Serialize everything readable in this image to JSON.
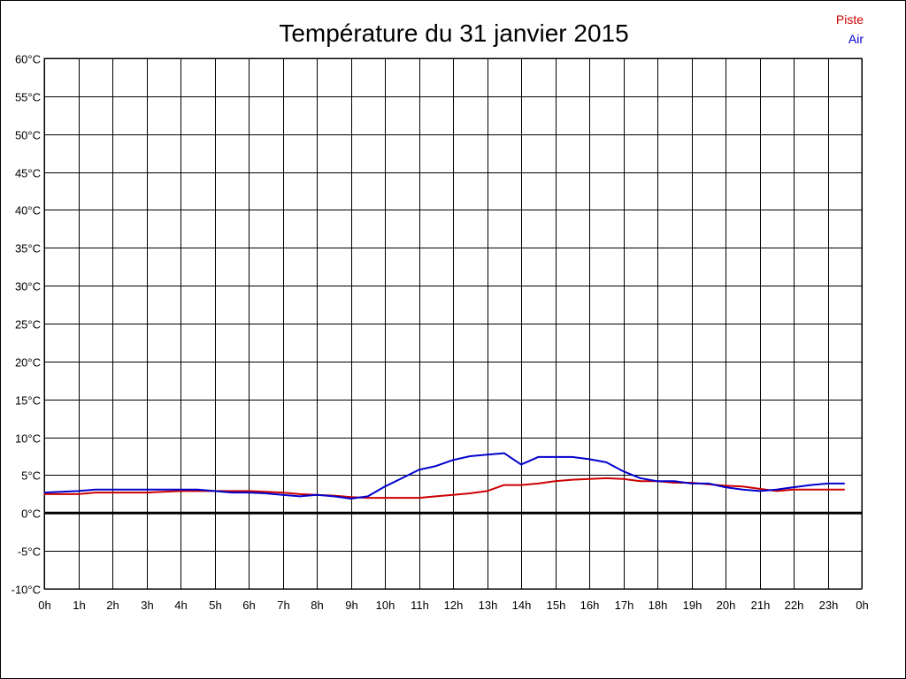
{
  "chart_data": {
    "type": "line",
    "title": "Température du 31 janvier 2015",
    "xlabel": "",
    "ylabel": "",
    "x_ticks": [
      "0h",
      "1h",
      "2h",
      "3h",
      "4h",
      "5h",
      "6h",
      "7h",
      "8h",
      "9h",
      "10h",
      "11h",
      "12h",
      "13h",
      "14h",
      "15h",
      "16h",
      "17h",
      "18h",
      "19h",
      "20h",
      "21h",
      "22h",
      "23h",
      "0h"
    ],
    "y_ticks": [
      "60°C",
      "55°C",
      "50°C",
      "45°C",
      "40°C",
      "35°C",
      "30°C",
      "25°C",
      "20°C",
      "15°C",
      "10°C",
      "5°C",
      "0°C",
      "-5°C",
      "-10°C"
    ],
    "xlim": [
      0,
      24
    ],
    "ylim": [
      -10,
      60
    ],
    "grid": true,
    "legend_position": "top-right",
    "series": [
      {
        "name": "Piste",
        "color": "#cc0000",
        "x": [
          0,
          1,
          1.5,
          2,
          3,
          3.5,
          4,
          4.5,
          5,
          5.5,
          6,
          6.5,
          7,
          7.5,
          8,
          8.5,
          9,
          9.5,
          10,
          10.5,
          11,
          11.5,
          12,
          12.5,
          13,
          13.5,
          14,
          14.5,
          15,
          15.5,
          16,
          16.5,
          17,
          17.5,
          18,
          18.5,
          19,
          19.5,
          20,
          20.5,
          21,
          21.5,
          22,
          22.5,
          23,
          23.5
        ],
        "y": [
          2.5,
          2.5,
          2.7,
          2.7,
          2.7,
          2.8,
          2.9,
          2.9,
          2.9,
          2.9,
          2.9,
          2.8,
          2.7,
          2.5,
          2.4,
          2.3,
          2.1,
          2.0,
          2.0,
          2.0,
          2.0,
          2.2,
          2.4,
          2.6,
          2.9,
          3.7,
          3.7,
          3.9,
          4.2,
          4.4,
          4.5,
          4.6,
          4.5,
          4.2,
          4.2,
          4.0,
          4.0,
          3.8,
          3.6,
          3.5,
          3.2,
          2.9,
          3.1,
          3.1,
          3.1,
          3.1
        ]
      },
      {
        "name": "Air",
        "color": "#0000cc",
        "x": [
          0,
          1,
          1.5,
          2,
          3,
          3.5,
          4,
          4.5,
          5,
          5.5,
          6,
          6.5,
          7,
          7.5,
          8,
          8.5,
          9,
          9.5,
          10,
          10.5,
          11,
          11.5,
          12,
          12.5,
          13,
          13.5,
          14,
          14.5,
          15,
          15.5,
          16,
          16.5,
          17,
          17.5,
          18,
          18.5,
          19,
          19.5,
          20,
          20.5,
          21,
          21.5,
          22,
          22.5,
          23,
          23.5
        ],
        "y": [
          2.7,
          2.9,
          3.1,
          3.1,
          3.1,
          3.1,
          3.1,
          3.1,
          2.9,
          2.7,
          2.7,
          2.6,
          2.4,
          2.2,
          2.4,
          2.2,
          1.9,
          2.2,
          3.5,
          4.6,
          5.7,
          6.2,
          7.0,
          7.5,
          7.7,
          7.9,
          6.4,
          7.4,
          7.4,
          7.4,
          7.1,
          6.7,
          5.5,
          4.6,
          4.2,
          4.2,
          3.9,
          3.9,
          3.4,
          3.1,
          2.9,
          3.1,
          3.4,
          3.7,
          3.9,
          3.9
        ]
      }
    ]
  }
}
